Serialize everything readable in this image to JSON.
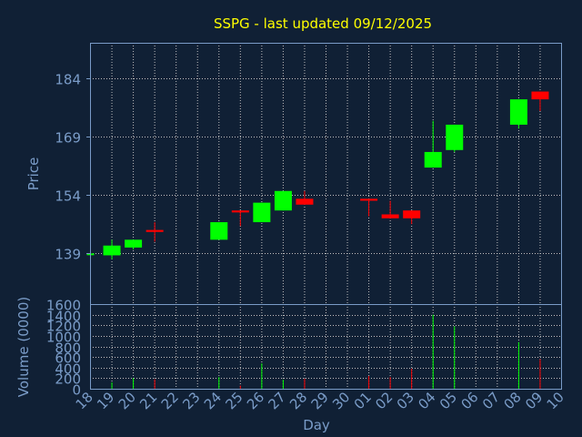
{
  "chart_data": {
    "type": "candlestick",
    "title": "SSPG - last updated 09/12/2025",
    "ylabel": "Price",
    "xlabel": "Day",
    "volume_label": "Volume (0000)",
    "price_axis": {
      "min": 126,
      "max": 193,
      "ticks": [
        139,
        154,
        169,
        184
      ]
    },
    "volume_axis": {
      "min": 0,
      "max": 1600,
      "ticks": [
        0,
        200,
        400,
        600,
        800,
        1000,
        1200,
        1400,
        1600
      ]
    },
    "x_labels": [
      "18",
      "19",
      "20",
      "21",
      "22",
      "23",
      "24",
      "25",
      "26",
      "27",
      "28",
      "29",
      "30",
      "01",
      "02",
      "03",
      "04",
      "05",
      "06",
      "07",
      "08",
      "09",
      "10"
    ],
    "grid": true,
    "colors": {
      "background": "#102035",
      "title": "#ffff00",
      "axis_text": "#7a9cc8",
      "grid": "#c0c0c0",
      "up": "#00ff00",
      "down": "#ff0000"
    },
    "candles": [
      {
        "day": "18",
        "open": 139.0,
        "close": 139.0,
        "high": 139.2,
        "low": 138.8,
        "volume": 0
      },
      {
        "day": "19",
        "open": 138.5,
        "close": 141.0,
        "high": 142.5,
        "low": 137.5,
        "volume": 120
      },
      {
        "day": "20",
        "open": 140.5,
        "close": 142.5,
        "high": 142.5,
        "low": 140.0,
        "volume": 200
      },
      {
        "day": "21",
        "open": 145.0,
        "close": 144.5,
        "high": 147.0,
        "low": 142.0,
        "volume": 180
      },
      {
        "day": "24",
        "open": 142.5,
        "close": 147.0,
        "high": 147.0,
        "low": 142.5,
        "volume": 220
      },
      {
        "day": "25",
        "open": 150.0,
        "close": 149.5,
        "high": 150.0,
        "low": 146.0,
        "volume": 60
      },
      {
        "day": "26",
        "open": 147.0,
        "close": 152.0,
        "high": 152.0,
        "low": 147.0,
        "volume": 480
      },
      {
        "day": "27",
        "open": 150.0,
        "close": 155.0,
        "high": 155.0,
        "low": 150.0,
        "volume": 170
      },
      {
        "day": "28",
        "open": 153.0,
        "close": 151.5,
        "high": 155.0,
        "low": 151.5,
        "volume": 190
      },
      {
        "day": "01",
        "open": 153.0,
        "close": 152.5,
        "high": 153.0,
        "low": 148.5,
        "volume": 240
      },
      {
        "day": "02",
        "open": 149.0,
        "close": 148.0,
        "high": 152.5,
        "low": 148.0,
        "volume": 220
      },
      {
        "day": "03",
        "open": 150.0,
        "close": 148.0,
        "high": 150.0,
        "low": 146.5,
        "volume": 380
      },
      {
        "day": "04",
        "open": 161.0,
        "close": 165.0,
        "high": 173.0,
        "low": 161.0,
        "volume": 1400
      },
      {
        "day": "05",
        "open": 165.5,
        "close": 172.0,
        "high": 172.0,
        "low": 165.0,
        "volume": 1180
      },
      {
        "day": "08",
        "open": 172.0,
        "close": 178.5,
        "high": 178.5,
        "low": 171.0,
        "volume": 880
      },
      {
        "day": "09",
        "open": 180.5,
        "close": 178.5,
        "high": 180.5,
        "low": 175.5,
        "volume": 560
      }
    ]
  }
}
